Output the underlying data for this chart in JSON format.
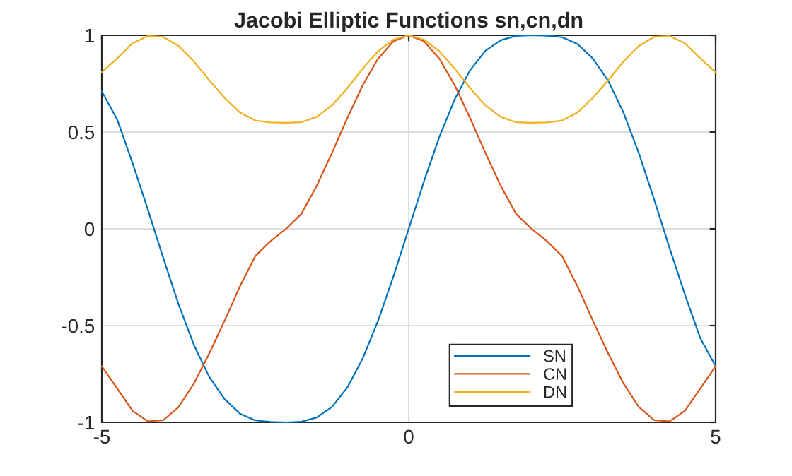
{
  "chart_data": {
    "type": "line",
    "title": "Jacobi Elliptic Functions sn,cn,dn",
    "x": [
      -5,
      -4.75,
      -4.5,
      -4.25,
      -4,
      -3.75,
      -3.5,
      -3.25,
      -3,
      -2.75,
      -2.5,
      -2.25,
      -2,
      -1.75,
      -1.5,
      -1.25,
      -1,
      -0.75,
      -0.5,
      -0.25,
      0,
      0.25,
      0.5,
      0.75,
      1,
      1.25,
      1.5,
      1.75,
      2,
      2.25,
      2.5,
      2.75,
      3,
      3.25,
      3.5,
      3.75,
      4,
      4.25,
      4.5,
      4.75,
      5
    ],
    "series": [
      {
        "name": "SN",
        "color": "#0072bd",
        "values": [
          0.71,
          0.565,
          0.34,
          0.1,
          -0.15,
          -0.39,
          -0.6,
          -0.765,
          -0.88,
          -0.955,
          -0.99,
          -0.998,
          -1,
          -0.997,
          -0.975,
          -0.92,
          -0.82,
          -0.67,
          -0.476,
          -0.247,
          0,
          0.247,
          0.476,
          0.67,
          0.82,
          0.92,
          0.975,
          0.997,
          1,
          0.998,
          0.99,
          0.955,
          0.88,
          0.765,
          0.6,
          0.39,
          0.15,
          -0.1,
          -0.34,
          -0.565,
          -0.71
        ]
      },
      {
        "name": "CN",
        "color": "#d95319",
        "values": [
          -0.71,
          -0.825,
          -0.94,
          -0.995,
          -0.989,
          -0.921,
          -0.8,
          -0.644,
          -0.475,
          -0.297,
          -0.141,
          -0.063,
          0,
          0.077,
          0.222,
          0.392,
          0.572,
          0.742,
          0.879,
          0.969,
          1,
          0.969,
          0.879,
          0.742,
          0.572,
          0.392,
          0.222,
          0.077,
          0,
          -0.063,
          -0.141,
          -0.297,
          -0.475,
          -0.644,
          -0.8,
          -0.921,
          -0.989,
          -0.995,
          -0.94,
          -0.825,
          -0.71
        ]
      },
      {
        "name": "DN",
        "color": "#edb120",
        "values": [
          0.81,
          0.881,
          0.959,
          0.996,
          0.992,
          0.945,
          0.865,
          0.768,
          0.677,
          0.601,
          0.56,
          0.55,
          0.548,
          0.551,
          0.578,
          0.638,
          0.727,
          0.828,
          0.917,
          0.978,
          1,
          0.978,
          0.917,
          0.828,
          0.727,
          0.638,
          0.578,
          0.551,
          0.548,
          0.55,
          0.56,
          0.601,
          0.677,
          0.768,
          0.865,
          0.945,
          0.992,
          0.996,
          0.959,
          0.881,
          0.81
        ]
      }
    ],
    "xlim": [
      -5,
      5
    ],
    "xticks": [
      -5,
      0,
      5
    ],
    "ylim": [
      -1,
      1
    ],
    "yticks": [
      -1,
      -0.5,
      0,
      0.5,
      1
    ],
    "grid": true,
    "legend": "bottom right",
    "line_style": "solid",
    "marker": "none"
  }
}
